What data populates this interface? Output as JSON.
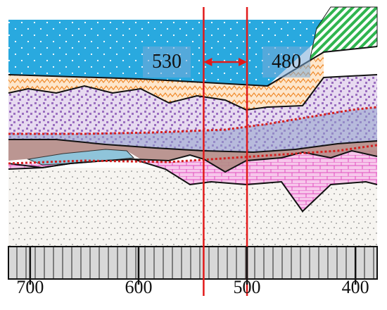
{
  "section_labels": {
    "left_value": "530",
    "right_value": "480"
  },
  "x_axis": {
    "tick_labels": [
      "700",
      "600",
      "500",
      "400"
    ],
    "ticks_data": [
      700,
      600,
      500,
      400
    ],
    "range": [
      720,
      380
    ],
    "direction": "decreasing"
  },
  "markers": {
    "vertical_lines_data": [
      540,
      500
    ],
    "line_color": "#e21a1a",
    "arrow": "double"
  },
  "colors": {
    "water": "#29a9df",
    "orange_layer": "#f2a25a",
    "purple_layer": "#c5a6d6",
    "blue_band": "#8fa0cc",
    "green_wedge": "#3bbf5e",
    "pink_layer": "#ee8fd2",
    "sand": "#f4f1ec",
    "base_hatch": "#d8d8d8",
    "red_line": "#d52020"
  }
}
